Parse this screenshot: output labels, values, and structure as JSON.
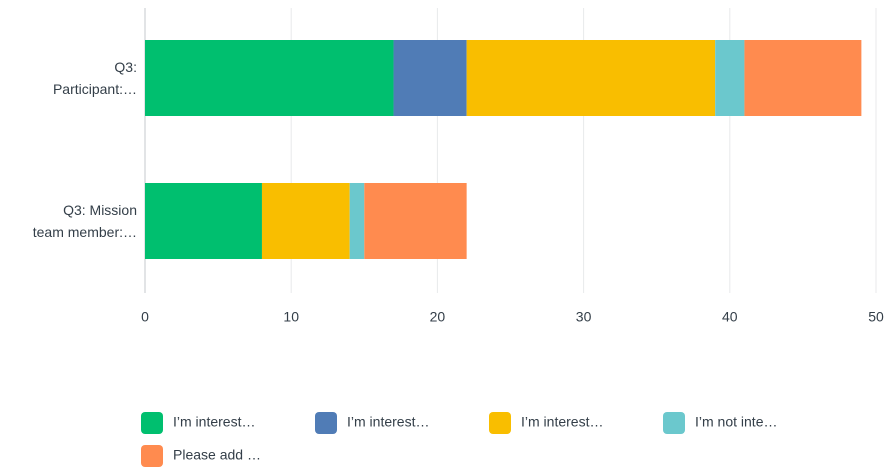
{
  "chart_data": {
    "type": "bar",
    "orientation": "horizontal",
    "stacked": true,
    "categories": [
      "Q3: Participant:…",
      "Q3: Mission team member:…"
    ],
    "series": [
      {
        "name": "I’m interest…",
        "color": "#00bf6f",
        "values": [
          17,
          8
        ]
      },
      {
        "name": "I’m interest…",
        "color": "#507cb6",
        "values": [
          5,
          0
        ]
      },
      {
        "name": "I’m interest…",
        "color": "#f9be00",
        "values": [
          17,
          6
        ]
      },
      {
        "name": "I’m not inte…",
        "color": "#6bc8cd",
        "values": [
          2,
          1
        ]
      },
      {
        "name": "Please add …",
        "color": "#ff8b4f",
        "values": [
          8,
          7
        ]
      }
    ],
    "xlim": [
      0,
      50
    ],
    "xticks": [
      0,
      10,
      20,
      30,
      40,
      50
    ],
    "grid": true,
    "legend": "bottom"
  }
}
